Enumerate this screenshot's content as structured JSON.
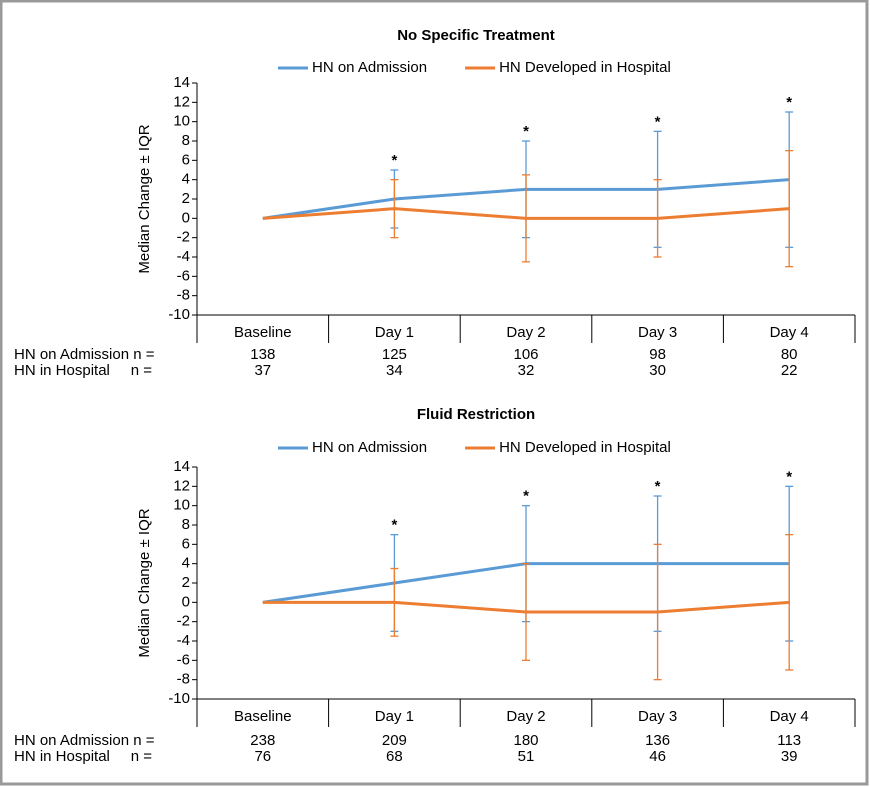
{
  "chart_data": [
    {
      "type": "line",
      "title": "No Specific Treatment",
      "ylabel": "Median Change ± IQR",
      "categories": [
        "Baseline",
        "Day 1",
        "Day 2",
        "Day 3",
        "Day 4"
      ],
      "ylim": [
        -10,
        14
      ],
      "yticks": [
        -10,
        -8,
        -6,
        -4,
        -2,
        0,
        2,
        4,
        6,
        8,
        10,
        12,
        14
      ],
      "legend": "top",
      "series": [
        {
          "name": "HN on Admission",
          "color": "#5b9bd5",
          "values": [
            0,
            2,
            3,
            3,
            4
          ],
          "iqr_low": [
            null,
            -1,
            -2,
            -3,
            -3
          ],
          "iqr_high": [
            null,
            5,
            8,
            9,
            11
          ]
        },
        {
          "name": "HN Developed in Hospital",
          "color": "#ed7d31",
          "values": [
            0,
            1,
            0,
            0,
            1
          ],
          "iqr_low": [
            null,
            -2,
            -4.5,
            -4,
            -5
          ],
          "iqr_high": [
            null,
            4,
            4.5,
            4,
            7
          ]
        }
      ],
      "markers": [
        null,
        "*",
        "*",
        "*",
        "*"
      ],
      "n_rows": [
        {
          "label": "HN on Admission n =",
          "values": [
            138,
            125,
            106,
            98,
            80
          ]
        },
        {
          "label": "HN in Hospital     n =",
          "values": [
            37,
            34,
            32,
            30,
            22
          ]
        }
      ]
    },
    {
      "type": "line",
      "title": "Fluid Restriction",
      "ylabel": "Median Change ± IQR",
      "categories": [
        "Baseline",
        "Day 1",
        "Day 2",
        "Day 3",
        "Day 4"
      ],
      "ylim": [
        -10,
        14
      ],
      "yticks": [
        -10,
        -8,
        -6,
        -4,
        -2,
        0,
        2,
        4,
        6,
        8,
        10,
        12,
        14
      ],
      "legend": "top",
      "series": [
        {
          "name": "HN on Admission",
          "color": "#5b9bd5",
          "values": [
            0,
            2,
            4,
            4,
            4
          ],
          "iqr_low": [
            null,
            -3,
            -2,
            -3,
            -4
          ],
          "iqr_high": [
            null,
            7,
            10,
            11,
            12
          ]
        },
        {
          "name": "HN Developed in Hospital",
          "color": "#ed7d31",
          "values": [
            0,
            0,
            -1,
            -1,
            0
          ],
          "iqr_low": [
            null,
            -3.5,
            -6,
            -8,
            -7
          ],
          "iqr_high": [
            null,
            3.5,
            4,
            6,
            7
          ]
        }
      ],
      "markers": [
        null,
        "*",
        "*",
        "*",
        "*"
      ],
      "n_rows": [
        {
          "label": "HN on Admission n =",
          "values": [
            238,
            209,
            180,
            136,
            113
          ]
        },
        {
          "label": "HN in Hospital     n =",
          "values": [
            76,
            68,
            51,
            46,
            39
          ]
        }
      ]
    }
  ]
}
